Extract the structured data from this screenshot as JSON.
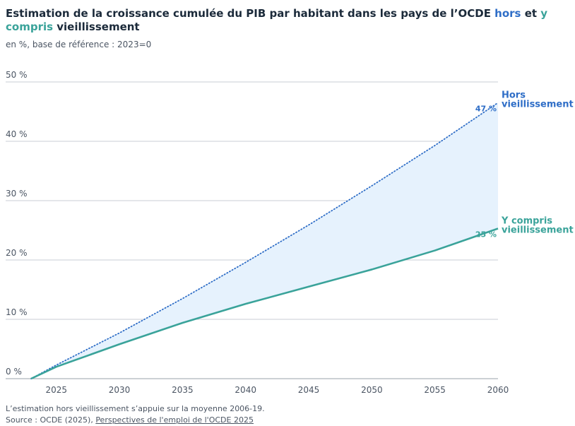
{
  "header": {
    "title_main": "Estimation de la croissance cumulée du PIB par habitant dans les pays de l’OCDE ",
    "title_hors": "hors",
    "title_et": " et ",
    "title_ycompris": "y compris",
    "title_end": " vieillissement",
    "subtitle": "en %, base de référence : 2023=0"
  },
  "footer": {
    "note": "L’estimation hors vieillissement s’appuie sur la moyenne 2006-19.",
    "source_prefix": "Source : OCDE (2025), ",
    "source_link": "Perspectives de l'emploi de l'OCDE 2025"
  },
  "colors": {
    "hors": "#2f6ec7",
    "ycompris": "#3aa39a",
    "fill": "#e6f2fd",
    "grid": "#c8ccd4"
  },
  "chart_data": {
    "type": "line",
    "title": "Estimation de la croissance cumulée du PIB par habitant dans les pays de l’OCDE hors et y compris vieillissement",
    "subtitle": "en %, base de référence : 2023=0",
    "xlabel": "",
    "ylabel": "",
    "xlim": [
      2023,
      2060
    ],
    "ylim": [
      0,
      50
    ],
    "x_ticks": [
      2025,
      2030,
      2035,
      2040,
      2045,
      2050,
      2055,
      2060
    ],
    "y_ticks": [
      0,
      10,
      20,
      30,
      40,
      50
    ],
    "y_tick_labels": [
      "0 %",
      "10 %",
      "20 %",
      "30 %",
      "40 %",
      "50 %"
    ],
    "grid": "horizontal",
    "shaded_area_between_series": true,
    "series": [
      {
        "name": "Hors vieillissement",
        "line_label": [
          "Hors",
          "vieillissement"
        ],
        "style": "dotted",
        "end_label": "47 %",
        "x": [
          2023,
          2025,
          2030,
          2035,
          2040,
          2045,
          2050,
          2055,
          2060
        ],
        "y": [
          0,
          2.3,
          7.7,
          13.5,
          19.6,
          25.9,
          32.5,
          39.3,
          46.5
        ]
      },
      {
        "name": "Y compris vieillissement",
        "line_label": [
          "Y compris",
          "vieillissement"
        ],
        "style": "solid",
        "end_label": "25 %",
        "x": [
          2023,
          2025,
          2030,
          2035,
          2040,
          2045,
          2050,
          2055,
          2060
        ],
        "y": [
          0,
          2.0,
          5.8,
          9.4,
          12.6,
          15.5,
          18.4,
          21.6,
          25.3
        ]
      }
    ]
  }
}
